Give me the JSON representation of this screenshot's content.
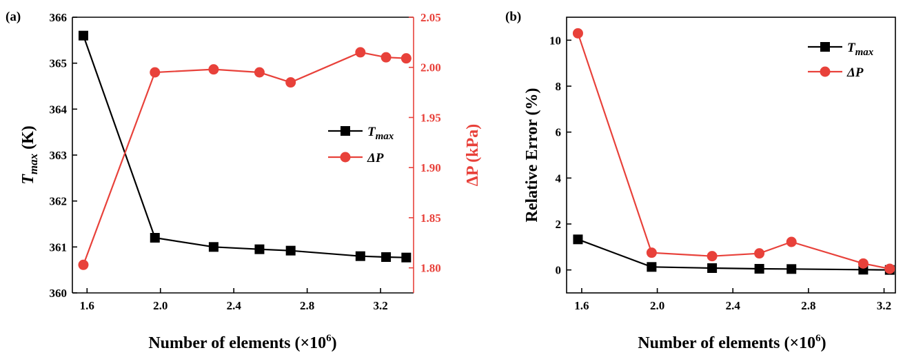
{
  "chart_data": [
    {
      "type": "line",
      "panel_label": "(a)",
      "xlabel_main": "Number of elements (×10",
      "xlabel_sup": "6",
      "xlabel_close": ")",
      "ylabel_left_main": "T",
      "ylabel_left_sub": "max",
      "ylabel_left_unit": " (K)",
      "ylabel_right": "ΔP (kPa)",
      "xlim": [
        1.52,
        3.38
      ],
      "ylim_left": [
        360,
        366
      ],
      "ylim_right": [
        1.775,
        2.05
      ],
      "xticks": [
        "1.6",
        "2.0",
        "2.4",
        "2.8",
        "3.2"
      ],
      "yticks_left": [
        "360",
        "361",
        "362",
        "363",
        "364",
        "365",
        "366"
      ],
      "yticks_right": [
        "1.80",
        "1.85",
        "1.90",
        "1.95",
        "2.00",
        "2.05"
      ],
      "legend_position": "center-right",
      "series": [
        {
          "name_main": "T",
          "name_sub": "max",
          "axis": "left",
          "color": "#000000",
          "marker": "square",
          "x": [
            1.58,
            1.97,
            2.29,
            2.54,
            2.71,
            3.09,
            3.23,
            3.34
          ],
          "y": [
            365.6,
            361.2,
            361.0,
            360.95,
            360.92,
            360.8,
            360.78,
            360.77
          ]
        },
        {
          "name_main": "ΔP",
          "name_sub": "",
          "axis": "right",
          "color": "#e8413a",
          "marker": "circle",
          "x": [
            1.58,
            1.97,
            2.29,
            2.54,
            2.71,
            3.09,
            3.23,
            3.34
          ],
          "y": [
            1.803,
            1.995,
            1.998,
            1.995,
            1.985,
            2.015,
            2.01,
            2.009
          ]
        }
      ]
    },
    {
      "type": "line",
      "panel_label": "(b)",
      "xlabel_main": "Number of elements (×10",
      "xlabel_sup": "6",
      "xlabel_close": ")",
      "ylabel": "Relative Error (%)",
      "xlim": [
        1.52,
        3.26
      ],
      "ylim": [
        -1,
        11
      ],
      "xticks": [
        "1.6",
        "2.0",
        "2.4",
        "2.8",
        "3.2"
      ],
      "yticks": [
        "0",
        "2",
        "4",
        "6",
        "8",
        "10"
      ],
      "legend_position": "top-right",
      "series": [
        {
          "name_main": "T",
          "name_sub": "max",
          "color": "#000000",
          "marker": "square",
          "x": [
            1.58,
            1.97,
            2.29,
            2.54,
            2.71,
            3.09,
            3.23
          ],
          "y": [
            1.33,
            0.13,
            0.08,
            0.05,
            0.04,
            0.01,
            0.0
          ]
        },
        {
          "name_main": "ΔP",
          "name_sub": "",
          "color": "#e8413a",
          "marker": "circle",
          "x": [
            1.58,
            1.97,
            2.29,
            2.54,
            2.71,
            3.09,
            3.23
          ],
          "y": [
            10.3,
            0.75,
            0.6,
            0.72,
            1.22,
            0.28,
            0.05
          ]
        }
      ]
    }
  ]
}
